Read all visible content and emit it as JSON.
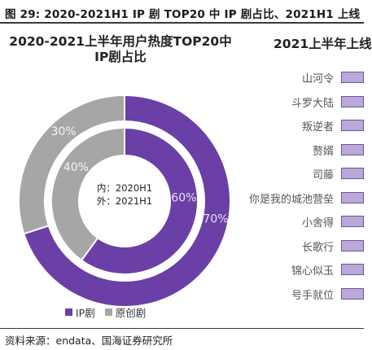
{
  "figure_title": "图 29:  2020-2021H1 IP 剧 TOP20 中 IP 剧占比、2021H1 上线",
  "source_text": "资料来源：endata、国海证券研究所",
  "chart_data": [
    {
      "type": "pie",
      "title": "2020-2021上半年用户热度TOP20中IP剧占比",
      "center_label_lines": [
        "内：2020H1",
        "外：2021H1"
      ],
      "legend": [
        "IP剧",
        "原创剧"
      ],
      "legend_position": "bottom",
      "colors": {
        "IP剧": "#6a3fa6",
        "原创剧": "#a6a6a6"
      },
      "rings": [
        {
          "name": "2020H1",
          "ring": "inner",
          "values": {
            "IP剧": 60,
            "原创剧": 40
          },
          "labels": {
            "IP剧": "60%",
            "原创剧": "40%"
          }
        },
        {
          "name": "2021H1",
          "ring": "outer",
          "values": {
            "IP剧": 70,
            "原创剧": 30
          },
          "labels": {
            "IP剧": "70%",
            "原创剧": "30%"
          }
        }
      ]
    },
    {
      "type": "bar",
      "title": "2021上半年上线",
      "orientation": "horizontal",
      "categories": [
        "山河令",
        "斗罗大陆",
        "叛逆者",
        "赘婿",
        "司藤",
        "你是我的城池营垒",
        "小舍得",
        "长歌行",
        "锦心似玉",
        "号手就位"
      ]
    }
  ]
}
